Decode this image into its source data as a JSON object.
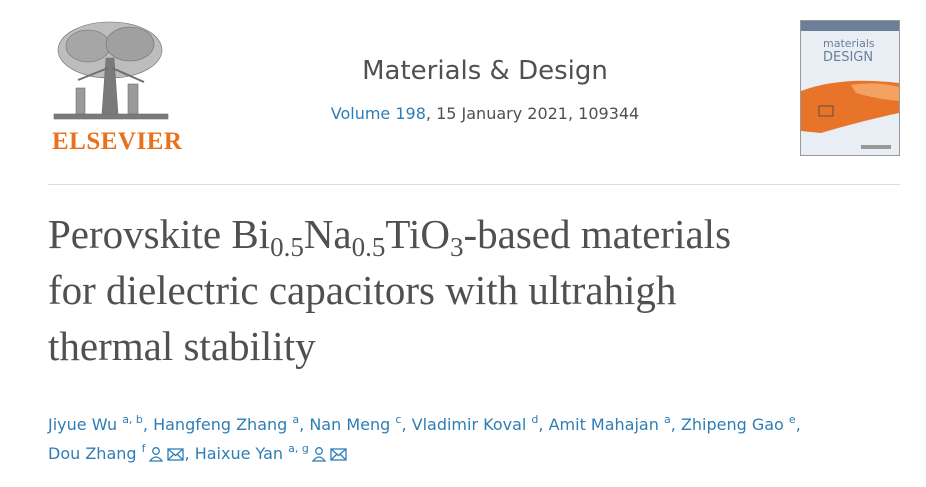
{
  "publisher": "ELSEVIER",
  "journal": {
    "name": "Materials & Design",
    "volume": "Volume 198",
    "issue_info": ", 15 January 2021, 109344"
  },
  "cover": {
    "title_top": "materials",
    "title_bottom": "DESIGN"
  },
  "title": {
    "lines": [
      [
        {
          "text": "Perovskite Bi"
        },
        {
          "text": "0.5",
          "sub": true
        },
        {
          "text": "Na"
        },
        {
          "text": "0.5",
          "sub": true
        },
        {
          "text": "TiO"
        },
        {
          "text": "3",
          "sub": true
        },
        {
          "text": "-based materials"
        }
      ],
      [
        {
          "text": "for dielectric capacitors with ultrahigh"
        }
      ],
      [
        {
          "text": "thermal stability"
        }
      ]
    ]
  },
  "authors": {
    "separator": ",",
    "lines": [
      [
        {
          "name": "Jiyue Wu",
          "affil": "a, b"
        },
        {
          "name": "Hangfeng Zhang",
          "affil": "a"
        },
        {
          "name": "Nan Meng",
          "affil": "c"
        },
        {
          "name": "Vladimir Koval",
          "affil": "d"
        },
        {
          "name": "Amit Mahajan",
          "affil": "a"
        },
        {
          "name": "Zhipeng Gao",
          "affil": "e"
        }
      ],
      [
        {
          "name": "Dou Zhang",
          "affil": "f",
          "corresponding": true
        },
        {
          "name": "Haixue Yan",
          "affil": "a, g",
          "corresponding": true
        }
      ]
    ]
  }
}
